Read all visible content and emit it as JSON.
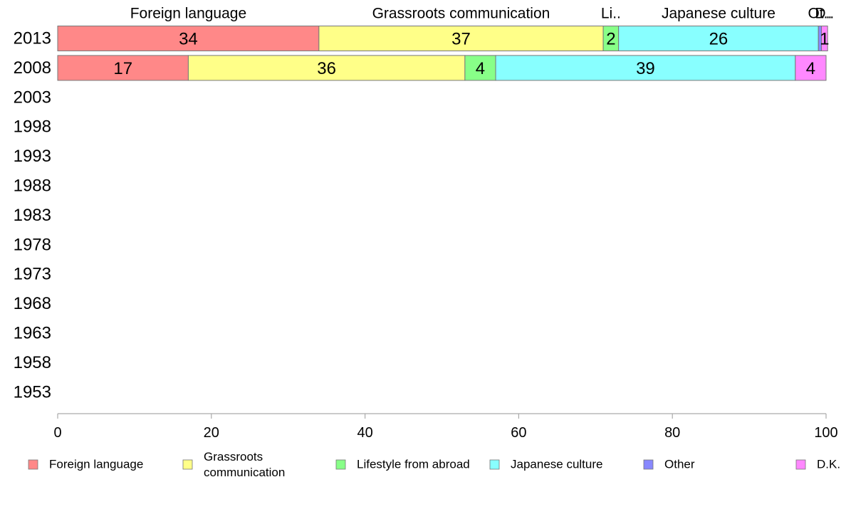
{
  "chart_data": {
    "type": "bar",
    "orientation": "horizontal",
    "stacked": true,
    "categories": [
      "2013",
      "2008",
      "2003",
      "1998",
      "1993",
      "1988",
      "1983",
      "1978",
      "1973",
      "1968",
      "1963",
      "1958",
      "1953"
    ],
    "series": [
      {
        "name": "Foreign language",
        "color": "#ff8888",
        "values": [
          34,
          17,
          null,
          null,
          null,
          null,
          null,
          null,
          null,
          null,
          null,
          null,
          null
        ]
      },
      {
        "name": "Grassroots communication",
        "color": "#ffff88",
        "values": [
          37,
          36,
          null,
          null,
          null,
          null,
          null,
          null,
          null,
          null,
          null,
          null,
          null
        ]
      },
      {
        "name": "Lifestyle from abroad",
        "color": "#88ff88",
        "values": [
          2,
          4,
          null,
          null,
          null,
          null,
          null,
          null,
          null,
          null,
          null,
          null,
          null
        ]
      },
      {
        "name": "Japanese culture",
        "color": "#88ffff",
        "values": [
          26,
          39,
          null,
          null,
          null,
          null,
          null,
          null,
          null,
          null,
          null,
          null,
          null
        ]
      },
      {
        "name": "Other",
        "color": "#8888ff",
        "values": [
          0.4,
          0,
          null,
          null,
          null,
          null,
          null,
          null,
          null,
          null,
          null,
          null,
          null
        ]
      },
      {
        "name": "D.K.",
        "color": "#ff88ff",
        "values": [
          0.8,
          4,
          null,
          null,
          null,
          null,
          null,
          null,
          null,
          null,
          null,
          null,
          null
        ]
      }
    ],
    "data_labels": [
      [
        "34",
        "37",
        "2",
        "26",
        "",
        "1"
      ],
      [
        "17",
        "36",
        "4",
        "39",
        "",
        "4"
      ]
    ],
    "top_labels": [
      "Foreign language",
      "Grassroots communication",
      "Li..",
      "Japanese culture",
      "Ot..",
      "D.."
    ],
    "legend_labels": [
      [
        "Foreign language"
      ],
      [
        "Grassroots",
        "communication"
      ],
      [
        "Lifestyle from abroad"
      ],
      [
        "Japanese culture"
      ],
      [
        "Other"
      ],
      [
        "D.K."
      ]
    ],
    "xlim": [
      0,
      100
    ],
    "xticks": [
      0,
      20,
      40,
      60,
      80,
      100
    ],
    "title": "",
    "xlabel": "",
    "ylabel": "",
    "grid": false,
    "legend_position": "bottom"
  }
}
